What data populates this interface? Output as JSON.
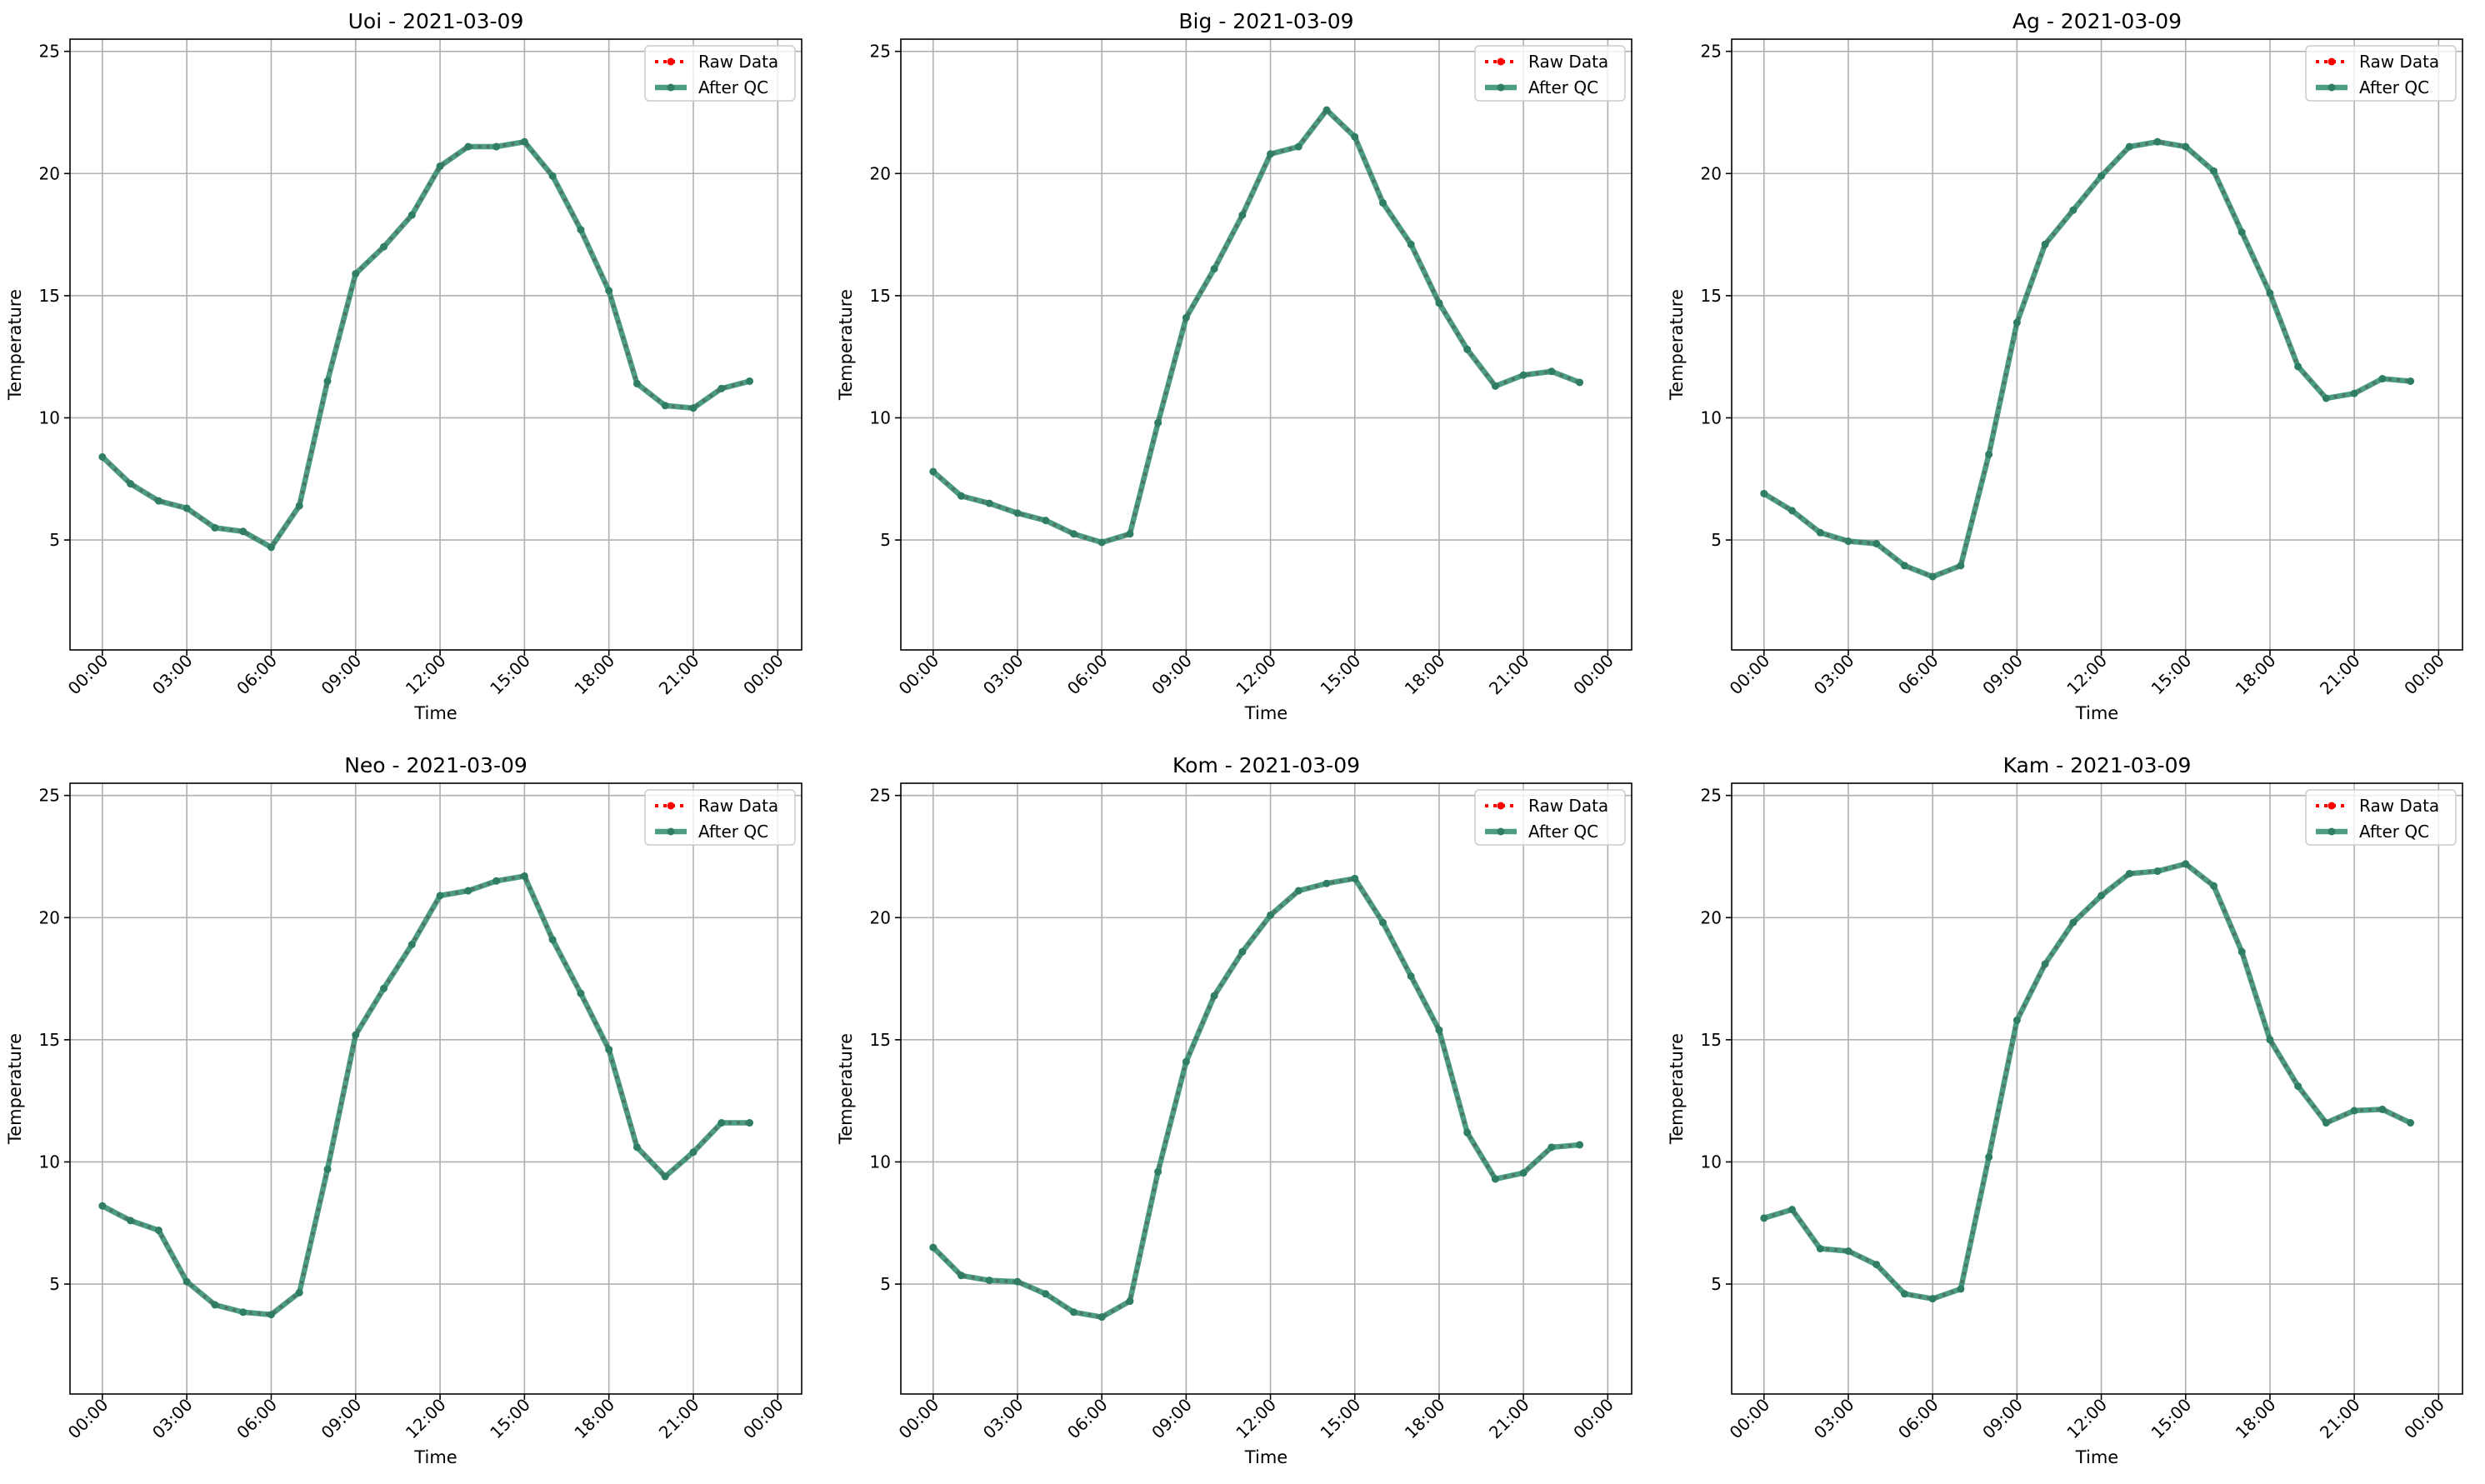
{
  "colors": {
    "raw": "#ff0000",
    "after_qc": "#2e8b6e",
    "grid": "#b0b0b0"
  },
  "legend": {
    "raw_label": "Raw Data",
    "qc_label": "After QC"
  },
  "chart_data": [
    {
      "type": "line",
      "title": "Uoi - 2021-03-09",
      "xlabel": "Time",
      "ylabel": "Temperature",
      "ylim": [
        0.5,
        25.5
      ],
      "yticks": [
        5,
        10,
        15,
        20,
        25
      ],
      "xticks": [
        "00:00",
        "03:00",
        "06:00",
        "09:00",
        "12:00",
        "15:00",
        "18:00",
        "21:00",
        "00:00"
      ],
      "grid": true,
      "legend_position": "top-right",
      "x": [
        "00:00",
        "01:00",
        "02:00",
        "03:00",
        "04:00",
        "05:00",
        "06:00",
        "07:00",
        "08:00",
        "09:00",
        "10:00",
        "11:00",
        "12:00",
        "13:00",
        "14:00",
        "15:00",
        "16:00",
        "17:00",
        "18:00",
        "19:00",
        "20:00",
        "21:00",
        "22:00",
        "23:00"
      ],
      "series": [
        {
          "name": "Raw Data",
          "values": [
            8.4,
            7.3,
            6.6,
            6.3,
            5.5,
            5.35,
            4.7,
            6.4,
            11.5,
            15.9,
            17.0,
            18.3,
            20.3,
            21.1,
            21.1,
            21.3,
            19.9,
            17.7,
            15.2,
            11.4,
            10.5,
            10.4,
            11.2,
            11.5
          ]
        },
        {
          "name": "After QC",
          "values": [
            8.4,
            7.3,
            6.6,
            6.3,
            5.5,
            5.35,
            4.7,
            6.4,
            11.5,
            15.9,
            17.0,
            18.3,
            20.3,
            21.1,
            21.1,
            21.3,
            19.9,
            17.7,
            15.2,
            11.4,
            10.5,
            10.4,
            11.2,
            11.5
          ]
        }
      ]
    },
    {
      "type": "line",
      "title": "Big - 2021-03-09",
      "xlabel": "Time",
      "ylabel": "Temperature",
      "ylim": [
        0.5,
        25.5
      ],
      "yticks": [
        5,
        10,
        15,
        20,
        25
      ],
      "xticks": [
        "00:00",
        "03:00",
        "06:00",
        "09:00",
        "12:00",
        "15:00",
        "18:00",
        "21:00",
        "00:00"
      ],
      "grid": true,
      "legend_position": "top-right",
      "x": [
        "00:00",
        "01:00",
        "02:00",
        "03:00",
        "04:00",
        "05:00",
        "06:00",
        "07:00",
        "08:00",
        "09:00",
        "10:00",
        "11:00",
        "12:00",
        "13:00",
        "14:00",
        "15:00",
        "16:00",
        "17:00",
        "18:00",
        "19:00",
        "20:00",
        "21:00",
        "22:00",
        "23:00"
      ],
      "series": [
        {
          "name": "Raw Data",
          "values": [
            7.8,
            6.8,
            6.5,
            6.1,
            5.8,
            5.25,
            4.9,
            5.25,
            9.8,
            14.1,
            16.1,
            18.3,
            20.8,
            21.1,
            22.6,
            21.5,
            18.8,
            17.1,
            14.7,
            12.8,
            11.3,
            11.75,
            11.9,
            11.45
          ]
        },
        {
          "name": "After QC",
          "values": [
            7.8,
            6.8,
            6.5,
            6.1,
            5.8,
            5.25,
            4.9,
            5.25,
            9.8,
            14.1,
            16.1,
            18.3,
            20.8,
            21.1,
            22.6,
            21.5,
            18.8,
            17.1,
            14.7,
            12.8,
            11.3,
            11.75,
            11.9,
            11.45
          ]
        }
      ]
    },
    {
      "type": "line",
      "title": "Ag - 2021-03-09",
      "xlabel": "Time",
      "ylabel": "Temperature",
      "ylim": [
        0.5,
        25.5
      ],
      "yticks": [
        5,
        10,
        15,
        20,
        25
      ],
      "xticks": [
        "00:00",
        "03:00",
        "06:00",
        "09:00",
        "12:00",
        "15:00",
        "18:00",
        "21:00",
        "00:00"
      ],
      "grid": true,
      "legend_position": "top-right",
      "x": [
        "00:00",
        "01:00",
        "02:00",
        "03:00",
        "04:00",
        "05:00",
        "06:00",
        "07:00",
        "08:00",
        "09:00",
        "10:00",
        "11:00",
        "12:00",
        "13:00",
        "14:00",
        "15:00",
        "16:00",
        "17:00",
        "18:00",
        "19:00",
        "20:00",
        "21:00",
        "22:00",
        "23:00"
      ],
      "series": [
        {
          "name": "Raw Data",
          "values": [
            6.9,
            6.2,
            5.3,
            4.95,
            4.85,
            3.95,
            3.5,
            3.95,
            8.5,
            13.9,
            17.1,
            18.5,
            19.9,
            21.1,
            21.3,
            21.1,
            20.1,
            17.6,
            15.1,
            12.1,
            10.8,
            11.0,
            11.6,
            11.5
          ]
        },
        {
          "name": "After QC",
          "values": [
            6.9,
            6.2,
            5.3,
            4.95,
            4.85,
            3.95,
            3.5,
            3.95,
            8.5,
            13.9,
            17.1,
            18.5,
            19.9,
            21.1,
            21.3,
            21.1,
            20.1,
            17.6,
            15.1,
            12.1,
            10.8,
            11.0,
            11.6,
            11.5
          ]
        }
      ]
    },
    {
      "type": "line",
      "title": "Neo - 2021-03-09",
      "xlabel": "Time",
      "ylabel": "Temperature",
      "ylim": [
        0.5,
        25.5
      ],
      "yticks": [
        5,
        10,
        15,
        20,
        25
      ],
      "xticks": [
        "00:00",
        "03:00",
        "06:00",
        "09:00",
        "12:00",
        "15:00",
        "18:00",
        "21:00",
        "00:00"
      ],
      "grid": true,
      "legend_position": "top-right",
      "x": [
        "00:00",
        "01:00",
        "02:00",
        "03:00",
        "04:00",
        "05:00",
        "06:00",
        "07:00",
        "08:00",
        "09:00",
        "10:00",
        "11:00",
        "12:00",
        "13:00",
        "14:00",
        "15:00",
        "16:00",
        "17:00",
        "18:00",
        "19:00",
        "20:00",
        "21:00",
        "22:00",
        "23:00"
      ],
      "series": [
        {
          "name": "Raw Data",
          "values": [
            8.2,
            7.6,
            7.2,
            5.1,
            4.15,
            3.85,
            3.75,
            4.65,
            9.7,
            15.2,
            17.1,
            18.9,
            20.9,
            21.1,
            21.5,
            21.7,
            19.1,
            16.9,
            14.6,
            10.6,
            9.4,
            10.4,
            11.6,
            11.6
          ]
        },
        {
          "name": "After QC",
          "values": [
            8.2,
            7.6,
            7.2,
            5.1,
            4.15,
            3.85,
            3.75,
            4.65,
            9.7,
            15.2,
            17.1,
            18.9,
            20.9,
            21.1,
            21.5,
            21.7,
            19.1,
            16.9,
            14.6,
            10.6,
            9.4,
            10.4,
            11.6,
            11.6
          ]
        }
      ]
    },
    {
      "type": "line",
      "title": "Kom - 2021-03-09",
      "xlabel": "Time",
      "ylabel": "Temperature",
      "ylim": [
        0.5,
        25.5
      ],
      "yticks": [
        5,
        10,
        15,
        20,
        25
      ],
      "xticks": [
        "00:00",
        "03:00",
        "06:00",
        "09:00",
        "12:00",
        "15:00",
        "18:00",
        "21:00",
        "00:00"
      ],
      "grid": true,
      "legend_position": "top-right",
      "x": [
        "00:00",
        "01:00",
        "02:00",
        "03:00",
        "04:00",
        "05:00",
        "06:00",
        "07:00",
        "08:00",
        "09:00",
        "10:00",
        "11:00",
        "12:00",
        "13:00",
        "14:00",
        "15:00",
        "16:00",
        "17:00",
        "18:00",
        "19:00",
        "20:00",
        "21:00",
        "22:00",
        "23:00"
      ],
      "series": [
        {
          "name": "Raw Data",
          "values": [
            6.5,
            5.35,
            5.15,
            5.1,
            4.6,
            3.85,
            3.65,
            4.3,
            9.6,
            14.1,
            16.8,
            18.6,
            20.1,
            21.1,
            21.4,
            21.6,
            19.8,
            17.6,
            15.4,
            11.2,
            9.3,
            9.55,
            10.6,
            10.7
          ]
        },
        {
          "name": "After QC",
          "values": [
            6.5,
            5.35,
            5.15,
            5.1,
            4.6,
            3.85,
            3.65,
            4.3,
            9.6,
            14.1,
            16.8,
            18.6,
            20.1,
            21.1,
            21.4,
            21.6,
            19.8,
            17.6,
            15.4,
            11.2,
            9.3,
            9.55,
            10.6,
            10.7
          ]
        }
      ]
    },
    {
      "type": "line",
      "title": "Kam - 2021-03-09",
      "xlabel": "Time",
      "ylabel": "Temperature",
      "ylim": [
        0.5,
        25.5
      ],
      "yticks": [
        5,
        10,
        15,
        20,
        25
      ],
      "xticks": [
        "00:00",
        "03:00",
        "06:00",
        "09:00",
        "12:00",
        "15:00",
        "18:00",
        "21:00",
        "00:00"
      ],
      "grid": true,
      "legend_position": "top-right",
      "x": [
        "00:00",
        "01:00",
        "02:00",
        "03:00",
        "04:00",
        "05:00",
        "06:00",
        "07:00",
        "08:00",
        "09:00",
        "10:00",
        "11:00",
        "12:00",
        "13:00",
        "14:00",
        "15:00",
        "16:00",
        "17:00",
        "18:00",
        "19:00",
        "20:00",
        "21:00",
        "22:00",
        "23:00"
      ],
      "series": [
        {
          "name": "Raw Data",
          "values": [
            7.7,
            8.05,
            6.45,
            6.35,
            5.8,
            4.6,
            4.4,
            4.8,
            10.2,
            15.8,
            18.1,
            19.8,
            20.9,
            21.8,
            21.9,
            22.2,
            21.3,
            18.6,
            15.0,
            13.1,
            11.6,
            12.1,
            12.15,
            11.6
          ]
        },
        {
          "name": "After QC",
          "values": [
            7.7,
            8.05,
            6.45,
            6.35,
            5.8,
            4.6,
            4.4,
            4.8,
            10.2,
            15.8,
            18.1,
            19.8,
            20.9,
            21.8,
            21.9,
            22.2,
            21.3,
            18.6,
            15.0,
            13.1,
            11.6,
            12.1,
            12.15,
            11.6
          ]
        }
      ]
    }
  ]
}
